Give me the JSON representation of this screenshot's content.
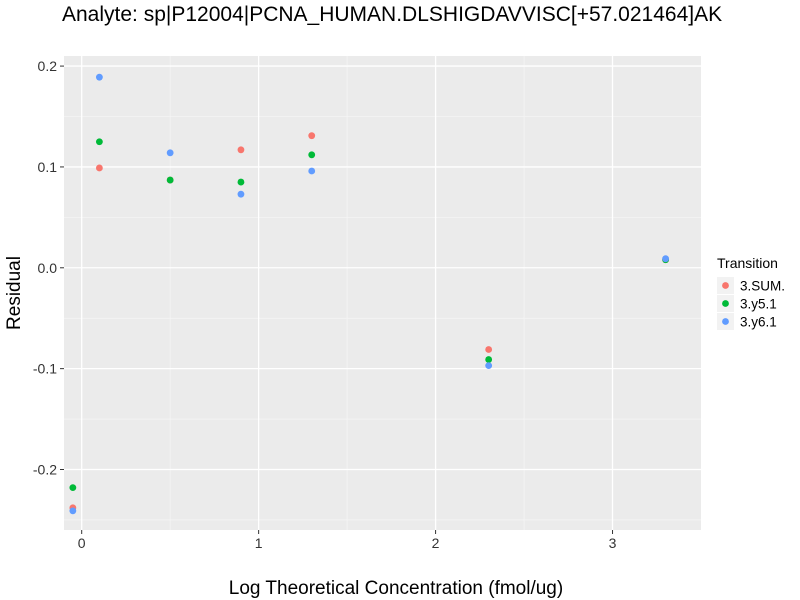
{
  "chart_data": {
    "type": "scatter",
    "title": "Analyte: sp|P12004|PCNA_HUMAN.DLSHIGDAVVISC[+57.021464]AK",
    "xlabel": "Log Theoretical Concentration (fmol/ug)",
    "ylabel": "Residual",
    "xlim": [
      -0.1,
      3.5
    ],
    "ylim": [
      -0.26,
      0.21
    ],
    "x_ticks": [
      0,
      1,
      2,
      3
    ],
    "x_tick_labels": [
      "0",
      "1",
      "2",
      "3"
    ],
    "y_ticks": [
      -0.2,
      -0.1,
      0.0,
      0.1,
      0.2
    ],
    "y_tick_labels": [
      "-0.2",
      "-0.1",
      "0.0",
      "0.1",
      "0.2"
    ],
    "grid": true,
    "legend_title": "Transition",
    "legend_position": "right",
    "series": [
      {
        "name": "3.SUM.",
        "color": "#F8766D",
        "x": [
          -0.05,
          0.1,
          0.5,
          0.9,
          1.3,
          2.3,
          3.3
        ],
        "y": [
          -0.238,
          0.099,
          0.087,
          0.117,
          0.131,
          -0.081,
          0.008
        ]
      },
      {
        "name": "3.y5.1",
        "color": "#00BA38",
        "x": [
          -0.05,
          0.1,
          0.5,
          0.9,
          1.3,
          2.3,
          3.3
        ],
        "y": [
          -0.218,
          0.125,
          0.087,
          0.085,
          0.112,
          -0.091,
          0.008
        ]
      },
      {
        "name": "3.y6.1",
        "color": "#619CFF",
        "x": [
          -0.05,
          0.1,
          0.5,
          0.9,
          1.3,
          2.3,
          3.3
        ],
        "y": [
          -0.241,
          0.189,
          0.114,
          0.073,
          0.096,
          -0.097,
          0.009
        ]
      }
    ]
  }
}
